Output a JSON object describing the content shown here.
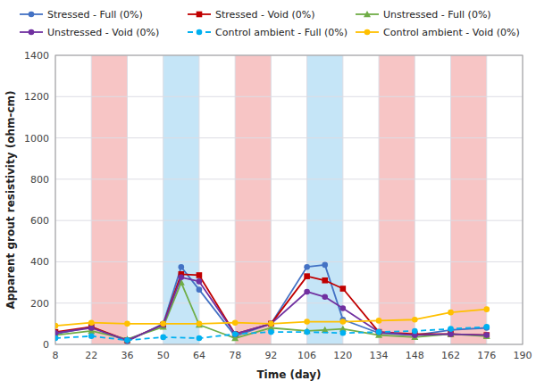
{
  "chart_data": {
    "type": "line",
    "xlabel": "Time (day)",
    "ylabel": "Apparent grout resistivity (ohm-cm)",
    "xlim": [
      8,
      190
    ],
    "ylim": [
      0,
      1400
    ],
    "xticks": [
      8,
      22,
      36,
      50,
      64,
      78,
      92,
      106,
      120,
      134,
      148,
      162,
      176,
      190
    ],
    "yticks": [
      0,
      200,
      400,
      600,
      800,
      1000,
      1200,
      1400
    ],
    "grid": true,
    "legend": "top",
    "shading_regions": [
      {
        "xmin": 22,
        "xmax": 36,
        "color": "#f7c5c5"
      },
      {
        "xmin": 50,
        "xmax": 64,
        "color": "#c5e5f7"
      },
      {
        "xmin": 78,
        "xmax": 92,
        "color": "#f7c5c5"
      },
      {
        "xmin": 106,
        "xmax": 120,
        "color": "#c5e5f7"
      },
      {
        "xmin": 134,
        "xmax": 148,
        "color": "#f7c5c5"
      },
      {
        "xmin": 162,
        "xmax": 176,
        "color": "#f7c5c5"
      }
    ],
    "series": [
      {
        "name": "Stressed - Full (0%)",
        "color": "#4472c4",
        "marker": "circle",
        "line_style": "solid",
        "x": [
          8,
          22,
          36,
          50,
          57,
          64,
          78,
          92,
          106,
          113,
          120,
          134,
          148,
          162,
          176
        ],
        "values": [
          50,
          85,
          15,
          100,
          375,
          265,
          40,
          100,
          375,
          385,
          120,
          55,
          45,
          70,
          80
        ]
      },
      {
        "name": "Stressed - Void (0%)",
        "color": "#c00000",
        "marker": "square",
        "line_style": "solid",
        "x": [
          8,
          22,
          36,
          50,
          57,
          64,
          78,
          92,
          106,
          113,
          120,
          134,
          148,
          162,
          176
        ],
        "values": [
          60,
          85,
          20,
          95,
          340,
          335,
          50,
          100,
          330,
          310,
          270,
          60,
          50,
          50,
          45
        ]
      },
      {
        "name": "Unstressed - Full (0%)",
        "color": "#70ad47",
        "marker": "triangle",
        "line_style": "solid",
        "x": [
          8,
          22,
          36,
          50,
          57,
          64,
          78,
          92,
          106,
          113,
          120,
          134,
          148,
          162,
          176
        ],
        "values": [
          45,
          65,
          25,
          85,
          300,
          95,
          30,
          80,
          65,
          70,
          75,
          45,
          35,
          50,
          40
        ]
      },
      {
        "name": "Unstressed - Void (0%)",
        "color": "#7030a0",
        "marker": "circle",
        "line_style": "solid",
        "x": [
          8,
          22,
          36,
          50,
          57,
          64,
          78,
          92,
          106,
          113,
          120,
          134,
          148,
          162,
          176
        ],
        "values": [
          55,
          80,
          20,
          95,
          325,
          305,
          50,
          100,
          255,
          230,
          175,
          60,
          45,
          50,
          45
        ]
      },
      {
        "name": "Control ambient - Full (0%)",
        "color": "#00b0f0",
        "marker": "circle",
        "line_style": "dashed",
        "x": [
          8,
          22,
          36,
          50,
          64,
          78,
          92,
          106,
          120,
          134,
          148,
          162,
          176
        ],
        "values": [
          30,
          40,
          20,
          35,
          30,
          50,
          60,
          60,
          55,
          60,
          65,
          75,
          85
        ]
      },
      {
        "name": "Control ambient - Void (0%)",
        "color": "#ffc000",
        "marker": "circle",
        "line_style": "solid",
        "x": [
          8,
          22,
          36,
          50,
          64,
          78,
          92,
          106,
          120,
          134,
          148,
          162,
          176
        ],
        "values": [
          90,
          105,
          100,
          100,
          100,
          105,
          100,
          110,
          110,
          115,
          120,
          155,
          170
        ]
      }
    ]
  }
}
